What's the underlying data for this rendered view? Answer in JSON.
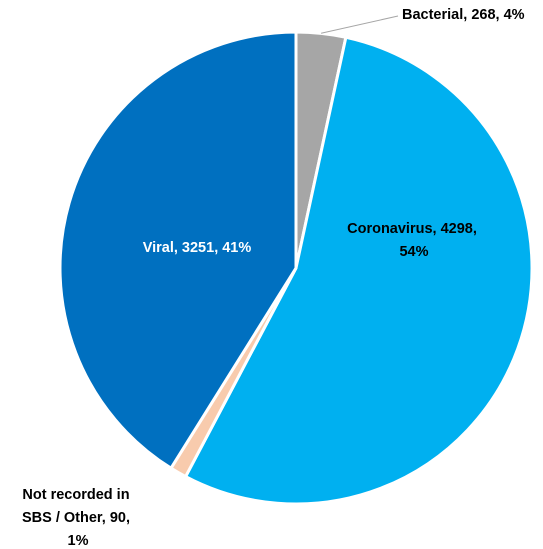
{
  "chart_data": {
    "type": "pie",
    "title": "",
    "slices": [
      {
        "label": "Bacterial",
        "value": 268,
        "percent": "4%",
        "color": "#a6a6a6",
        "text": "Bacterial, 268, 4%",
        "label_color": "#000000"
      },
      {
        "label": "Coronavirus",
        "value": 4298,
        "percent": "54%",
        "color": "#00b0f0",
        "text": "Coronavirus, 4298, 54%",
        "label_color": "#000000"
      },
      {
        "label": "Not recorded in SBS / Other",
        "value": 90,
        "percent": "1%",
        "color": "#f8cbad",
        "text": "Not recorded in SBS / Other, 90, 1%",
        "label_color": "#000000"
      },
      {
        "label": "Viral",
        "value": 3251,
        "percent": "41%",
        "color": "#0070c0",
        "text": "Viral, 3251, 41%",
        "label_color": "#ffffff"
      }
    ],
    "label_lines": {
      "bacterial": [
        "Bacterial, 268, 4%"
      ],
      "coronavirus": [
        "Coronavirus, 4298,",
        "54%"
      ],
      "other": [
        "Not recorded in",
        "SBS / Other, 90,",
        "1%"
      ],
      "viral": [
        "Viral, 3251, 41%"
      ]
    },
    "start_angle": "12 o'clock",
    "direction": "clockwise",
    "slice_border": "#ffffff",
    "legend": "none"
  }
}
